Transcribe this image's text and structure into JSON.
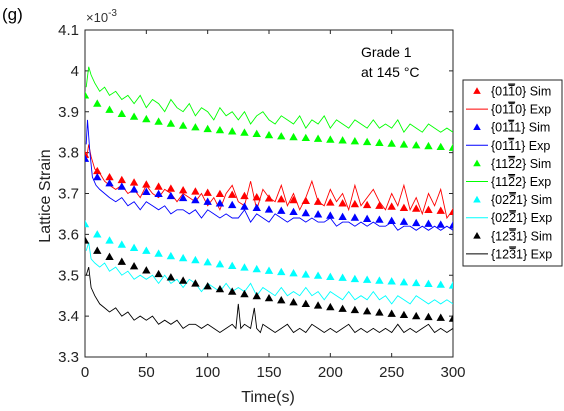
{
  "panel_label": "(g)",
  "chart_data": {
    "type": "line",
    "xlabel": "Time(s)",
    "ylabel": "Lattice Strain",
    "y_exponent": "×10",
    "y_exponent_power": "-3",
    "xlim": [
      0,
      300
    ],
    "ylim": [
      3.3,
      4.1
    ],
    "x_ticks": [
      "0",
      "50",
      "100",
      "150",
      "200",
      "250",
      "300"
    ],
    "y_ticks": [
      "3.3",
      "3.4",
      "3.5",
      "3.6",
      "3.7",
      "3.8",
      "3.9",
      "4",
      "4.1"
    ],
    "x_tick_values": [
      0,
      50,
      100,
      150,
      200,
      250,
      300
    ],
    "y_tick_values": [
      3.3,
      3.4,
      3.5,
      3.6,
      3.7,
      3.8,
      3.9,
      4.0,
      4.1
    ],
    "grid": false,
    "legend_position": "right",
    "annotations": [
      "Grade 1",
      "at 145 °C"
    ],
    "series": [
      {
        "name": "{01-10} Sim",
        "legend_label": {
          "pre": "{01",
          "bar": "1",
          "post": "0} Sim"
        },
        "kind": "markers",
        "color": "#ff0000",
        "x": [
          0,
          10,
          20,
          30,
          40,
          50,
          60,
          70,
          80,
          90,
          100,
          110,
          120,
          130,
          140,
          150,
          160,
          170,
          180,
          190,
          200,
          210,
          220,
          230,
          240,
          250,
          260,
          270,
          280,
          290,
          300
        ],
        "y": [
          3.795,
          3.755,
          3.74,
          3.733,
          3.727,
          3.722,
          3.717,
          3.712,
          3.708,
          3.705,
          3.702,
          3.699,
          3.697,
          3.694,
          3.691,
          3.688,
          3.686,
          3.684,
          3.682,
          3.68,
          3.678,
          3.676,
          3.674,
          3.672,
          3.67,
          3.668,
          3.665,
          3.663,
          3.66,
          3.658,
          3.655
        ]
      },
      {
        "name": "{01-10} Exp",
        "legend_label": {
          "pre": "{01",
          "bar": "1",
          "post": "0} Exp"
        },
        "kind": "line",
        "color": "#ff0000",
        "x": [
          1,
          3,
          5,
          8,
          12,
          16,
          20,
          25,
          30,
          35,
          40,
          45,
          50,
          55,
          60,
          65,
          70,
          75,
          80,
          85,
          90,
          95,
          100,
          105,
          110,
          115,
          120,
          125,
          130,
          135,
          140,
          145,
          150,
          155,
          160,
          165,
          170,
          175,
          180,
          185,
          190,
          195,
          200,
          205,
          210,
          215,
          220,
          225,
          230,
          235,
          240,
          245,
          250,
          255,
          260,
          265,
          270,
          275,
          280,
          285,
          290,
          295,
          300
        ],
        "y": [
          3.78,
          3.82,
          3.79,
          3.76,
          3.75,
          3.73,
          3.72,
          3.71,
          3.72,
          3.7,
          3.71,
          3.69,
          3.72,
          3.7,
          3.69,
          3.71,
          3.7,
          3.68,
          3.7,
          3.69,
          3.68,
          3.7,
          3.67,
          3.69,
          3.66,
          3.7,
          3.72,
          3.68,
          3.67,
          3.73,
          3.66,
          3.71,
          3.69,
          3.68,
          3.72,
          3.67,
          3.7,
          3.66,
          3.69,
          3.73,
          3.68,
          3.67,
          3.71,
          3.68,
          3.7,
          3.66,
          3.72,
          3.67,
          3.69,
          3.71,
          3.68,
          3.66,
          3.7,
          3.67,
          3.72,
          3.66,
          3.69,
          3.65,
          3.7,
          3.67,
          3.71,
          3.64,
          3.66
        ]
      },
      {
        "name": "{01-11} Sim",
        "legend_label": {
          "pre": "{01",
          "bar": "1",
          "post": "1} Sim"
        },
        "kind": "markers",
        "color": "#0000ff",
        "x": [
          0,
          10,
          20,
          30,
          40,
          50,
          60,
          70,
          80,
          90,
          100,
          110,
          120,
          130,
          140,
          150,
          160,
          170,
          180,
          190,
          200,
          210,
          220,
          230,
          240,
          250,
          260,
          270,
          280,
          290,
          300
        ],
        "y": [
          3.785,
          3.74,
          3.725,
          3.717,
          3.71,
          3.704,
          3.699,
          3.694,
          3.689,
          3.684,
          3.68,
          3.676,
          3.672,
          3.668,
          3.665,
          3.661,
          3.658,
          3.655,
          3.652,
          3.649,
          3.646,
          3.643,
          3.641,
          3.638,
          3.636,
          3.633,
          3.631,
          3.628,
          3.626,
          3.624,
          3.622
        ]
      },
      {
        "name": "{01-11} Exp",
        "legend_label": {
          "pre": "{01",
          "bar": "1",
          "post": "1} Exp"
        },
        "kind": "line",
        "color": "#0000ff",
        "x": [
          1,
          2,
          4,
          6,
          9,
          12,
          16,
          20,
          25,
          30,
          35,
          40,
          45,
          50,
          55,
          60,
          65,
          70,
          75,
          80,
          85,
          90,
          95,
          100,
          105,
          110,
          115,
          120,
          125,
          130,
          135,
          140,
          145,
          150,
          155,
          160,
          165,
          170,
          175,
          180,
          185,
          190,
          195,
          200,
          205,
          210,
          215,
          220,
          225,
          230,
          235,
          240,
          245,
          250,
          255,
          260,
          265,
          270,
          275,
          280,
          285,
          290,
          295,
          300
        ],
        "y": [
          3.82,
          3.88,
          3.8,
          3.74,
          3.72,
          3.71,
          3.7,
          3.69,
          3.68,
          3.69,
          3.67,
          3.68,
          3.66,
          3.68,
          3.67,
          3.66,
          3.67,
          3.65,
          3.66,
          3.66,
          3.65,
          3.66,
          3.64,
          3.66,
          3.65,
          3.64,
          3.65,
          3.64,
          3.64,
          3.66,
          3.63,
          3.65,
          3.64,
          3.63,
          3.65,
          3.64,
          3.63,
          3.64,
          3.64,
          3.63,
          3.64,
          3.63,
          3.63,
          3.64,
          3.62,
          3.63,
          3.63,
          3.62,
          3.63,
          3.62,
          3.63,
          3.62,
          3.62,
          3.63,
          3.61,
          3.62,
          3.62,
          3.61,
          3.62,
          3.61,
          3.62,
          3.61,
          3.62,
          3.61
        ]
      },
      {
        "name": "{11-22} Sim",
        "legend_label": {
          "pre": "{11",
          "bar": "2",
          "post": "2} Sim"
        },
        "kind": "markers",
        "color": "#00ff00",
        "x": [
          0,
          10,
          20,
          30,
          40,
          50,
          60,
          70,
          80,
          90,
          100,
          110,
          120,
          130,
          140,
          150,
          160,
          170,
          180,
          190,
          200,
          210,
          220,
          230,
          240,
          250,
          260,
          270,
          280,
          290,
          300
        ],
        "y": [
          3.94,
          3.92,
          3.905,
          3.895,
          3.888,
          3.882,
          3.876,
          3.871,
          3.866,
          3.862,
          3.858,
          3.855,
          3.852,
          3.849,
          3.846,
          3.843,
          3.84,
          3.838,
          3.836,
          3.834,
          3.832,
          3.83,
          3.828,
          3.826,
          3.824,
          3.822,
          3.82,
          3.818,
          3.816,
          3.814,
          3.812
        ]
      },
      {
        "name": "{11-22} Exp",
        "legend_label": {
          "pre": "{11",
          "bar": "2",
          "post": "2} Exp"
        },
        "kind": "line",
        "color": "#00ff00",
        "x": [
          1,
          3,
          5,
          8,
          12,
          16,
          20,
          25,
          30,
          35,
          40,
          45,
          50,
          55,
          60,
          65,
          70,
          75,
          80,
          85,
          90,
          95,
          100,
          105,
          110,
          115,
          120,
          125,
          130,
          135,
          140,
          145,
          150,
          155,
          160,
          165,
          170,
          175,
          180,
          185,
          190,
          195,
          200,
          205,
          210,
          215,
          220,
          225,
          230,
          235,
          240,
          245,
          250,
          255,
          260,
          265,
          270,
          275,
          280,
          285,
          290,
          295,
          300
        ],
        "y": [
          3.96,
          4.01,
          3.99,
          3.97,
          3.95,
          3.96,
          3.94,
          3.95,
          3.93,
          3.94,
          3.92,
          3.94,
          3.91,
          3.93,
          3.92,
          3.9,
          3.93,
          3.91,
          3.9,
          3.92,
          3.89,
          3.91,
          3.9,
          3.88,
          3.91,
          3.89,
          3.9,
          3.88,
          3.9,
          3.87,
          3.89,
          3.9,
          3.88,
          3.87,
          3.89,
          3.88,
          3.87,
          3.89,
          3.86,
          3.88,
          3.87,
          3.89,
          3.86,
          3.88,
          3.87,
          3.86,
          3.88,
          3.87,
          3.86,
          3.88,
          3.86,
          3.87,
          3.86,
          3.88,
          3.85,
          3.87,
          3.86,
          3.85,
          3.87,
          3.86,
          3.85,
          3.86,
          3.85
        ]
      },
      {
        "name": "{02-21} Sim",
        "legend_label": {
          "pre": "{02",
          "bar": "2",
          "post": "1} Sim"
        },
        "kind": "markers",
        "color": "#00ffff",
        "x": [
          0,
          10,
          20,
          30,
          40,
          50,
          60,
          70,
          80,
          90,
          100,
          110,
          120,
          130,
          140,
          150,
          160,
          170,
          180,
          190,
          200,
          210,
          220,
          230,
          240,
          250,
          260,
          270,
          280,
          290,
          300
        ],
        "y": [
          3.625,
          3.6,
          3.585,
          3.575,
          3.567,
          3.56,
          3.553,
          3.547,
          3.542,
          3.537,
          3.532,
          3.527,
          3.523,
          3.519,
          3.515,
          3.511,
          3.508,
          3.505,
          3.502,
          3.499,
          3.496,
          3.494,
          3.491,
          3.489,
          3.487,
          3.485,
          3.483,
          3.481,
          3.479,
          3.477,
          3.475
        ]
      },
      {
        "name": "{02-21} Exp",
        "legend_label": {
          "pre": "{02",
          "bar": "2",
          "post": "1} Exp"
        },
        "kind": "line",
        "color": "#00ffff",
        "x": [
          1,
          3,
          5,
          8,
          12,
          16,
          20,
          25,
          30,
          35,
          40,
          45,
          50,
          55,
          60,
          65,
          70,
          75,
          80,
          85,
          90,
          95,
          100,
          105,
          110,
          115,
          120,
          125,
          130,
          135,
          140,
          145,
          150,
          155,
          160,
          165,
          170,
          175,
          180,
          185,
          190,
          195,
          200,
          205,
          210,
          215,
          220,
          225,
          230,
          235,
          240,
          245,
          250,
          255,
          260,
          265,
          270,
          275,
          280,
          285,
          290,
          295,
          300
        ],
        "y": [
          3.56,
          3.58,
          3.54,
          3.53,
          3.52,
          3.53,
          3.51,
          3.52,
          3.5,
          3.51,
          3.49,
          3.5,
          3.49,
          3.5,
          3.48,
          3.5,
          3.48,
          3.49,
          3.47,
          3.49,
          3.48,
          3.46,
          3.48,
          3.47,
          3.46,
          3.48,
          3.46,
          3.47,
          3.46,
          3.48,
          3.45,
          3.47,
          3.46,
          3.45,
          3.47,
          3.45,
          3.46,
          3.45,
          3.47,
          3.45,
          3.46,
          3.44,
          3.46,
          3.45,
          3.44,
          3.46,
          3.44,
          3.45,
          3.44,
          3.46,
          3.44,
          3.45,
          3.43,
          3.45,
          3.44,
          3.43,
          3.45,
          3.44,
          3.43,
          3.44,
          3.43,
          3.44,
          3.43
        ]
      },
      {
        "name": "{12-31} Sim",
        "legend_label": {
          "pre": "{12",
          "bar": "3",
          "post": "1} Sim"
        },
        "kind": "markers",
        "color": "#000000",
        "x": [
          0,
          10,
          20,
          30,
          40,
          50,
          60,
          70,
          80,
          90,
          100,
          110,
          120,
          130,
          140,
          150,
          160,
          170,
          180,
          190,
          200,
          210,
          220,
          230,
          240,
          250,
          260,
          270,
          280,
          290,
          300
        ],
        "y": [
          3.585,
          3.56,
          3.545,
          3.533,
          3.522,
          3.512,
          3.503,
          3.495,
          3.487,
          3.48,
          3.473,
          3.466,
          3.46,
          3.454,
          3.449,
          3.444,
          3.439,
          3.434,
          3.43,
          3.426,
          3.422,
          3.418,
          3.415,
          3.412,
          3.409,
          3.406,
          3.403,
          3.4,
          3.398,
          3.396,
          3.394
        ]
      },
      {
        "name": "{12-31} Exp",
        "legend_label": {
          "pre": "{12",
          "bar": "3",
          "post": "1} Exp"
        },
        "kind": "line",
        "color": "#000000",
        "x": [
          1,
          3,
          5,
          8,
          12,
          16,
          20,
          25,
          30,
          35,
          40,
          45,
          50,
          55,
          60,
          65,
          70,
          75,
          80,
          85,
          90,
          95,
          100,
          105,
          110,
          115,
          120,
          123,
          125,
          127,
          130,
          135,
          138,
          140,
          143,
          145,
          150,
          155,
          160,
          165,
          170,
          175,
          180,
          185,
          190,
          195,
          200,
          205,
          210,
          215,
          220,
          225,
          230,
          235,
          240,
          245,
          250,
          255,
          260,
          265,
          270,
          275,
          280,
          285,
          290,
          295,
          300
        ],
        "y": [
          3.5,
          3.52,
          3.47,
          3.45,
          3.43,
          3.42,
          3.41,
          3.42,
          3.4,
          3.41,
          3.39,
          3.4,
          3.39,
          3.4,
          3.38,
          3.39,
          3.38,
          3.39,
          3.37,
          3.38,
          3.38,
          3.37,
          3.38,
          3.37,
          3.36,
          3.37,
          3.38,
          3.37,
          3.43,
          3.37,
          3.38,
          3.37,
          3.42,
          3.37,
          3.36,
          3.38,
          3.37,
          3.36,
          3.37,
          3.38,
          3.36,
          3.37,
          3.36,
          3.38,
          3.37,
          3.36,
          3.37,
          3.36,
          3.37,
          3.38,
          3.36,
          3.37,
          3.36,
          3.37,
          3.36,
          3.37,
          3.36,
          3.38,
          3.36,
          3.37,
          3.36,
          3.37,
          3.38,
          3.36,
          3.37,
          3.36,
          3.37
        ]
      }
    ]
  }
}
